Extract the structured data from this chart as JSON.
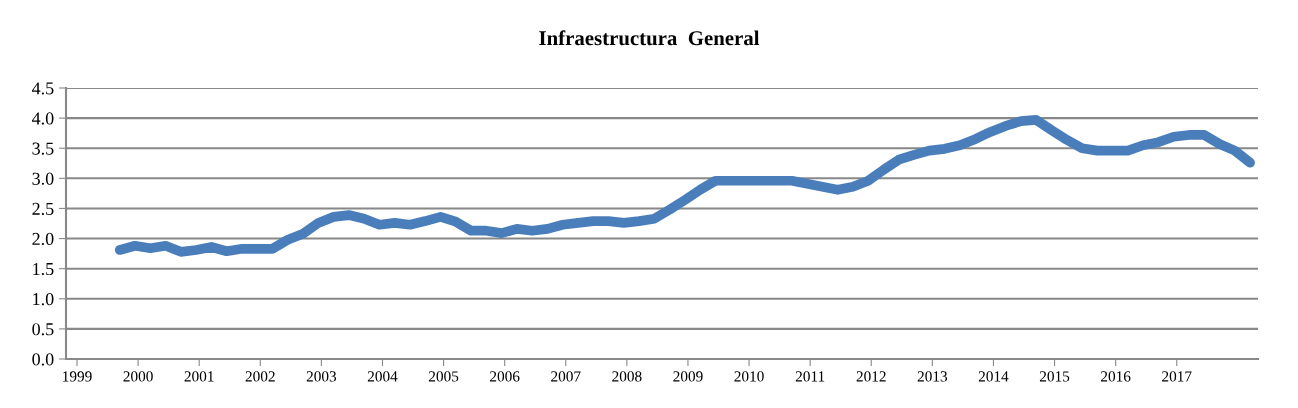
{
  "chart_data": {
    "type": "line",
    "title": "Infraestructura  General",
    "x": [
      1999.7,
      1999.95,
      2000.2,
      2000.45,
      2000.7,
      2000.95,
      2001.2,
      2001.45,
      2001.7,
      2001.95,
      2002.2,
      2002.45,
      2002.7,
      2002.95,
      2003.2,
      2003.45,
      2003.7,
      2003.95,
      2004.2,
      2004.45,
      2004.7,
      2004.95,
      2005.2,
      2005.45,
      2005.7,
      2005.95,
      2006.2,
      2006.45,
      2006.7,
      2006.95,
      2007.2,
      2007.45,
      2007.7,
      2007.95,
      2008.2,
      2008.45,
      2008.7,
      2008.95,
      2009.2,
      2009.45,
      2009.7,
      2009.95,
      2010.2,
      2010.45,
      2010.7,
      2010.95,
      2011.2,
      2011.45,
      2011.7,
      2011.95,
      2012.2,
      2012.45,
      2012.7,
      2012.95,
      2013.2,
      2013.45,
      2013.7,
      2013.95,
      2014.2,
      2014.45,
      2014.7,
      2014.95,
      2015.2,
      2015.45,
      2015.7,
      2015.95,
      2016.2,
      2016.45,
      2016.7,
      2016.95,
      2017.2,
      2017.45,
      2017.7,
      2017.95,
      2018.2
    ],
    "series": [
      {
        "color": "#4a7ebb",
        "values": [
          1.81,
          1.88,
          1.84,
          1.88,
          1.78,
          1.81,
          1.86,
          1.79,
          1.83,
          1.83,
          1.83,
          1.98,
          2.08,
          2.26,
          2.36,
          2.39,
          2.33,
          2.23,
          2.26,
          2.23,
          2.29,
          2.36,
          2.28,
          2.13,
          2.13,
          2.09,
          2.16,
          2.13,
          2.16,
          2.23,
          2.26,
          2.29,
          2.29,
          2.26,
          2.29,
          2.33,
          2.48,
          2.64,
          2.81,
          2.96,
          2.96,
          2.96,
          2.96,
          2.96,
          2.96,
          2.91,
          2.86,
          2.81,
          2.86,
          2.96,
          3.14,
          3.31,
          3.39,
          3.46,
          3.49,
          3.55,
          3.65,
          3.77,
          3.87,
          3.95,
          3.97,
          3.8,
          3.64,
          3.5,
          3.46,
          3.46,
          3.46,
          3.55,
          3.6,
          3.69,
          3.72,
          3.72,
          3.57,
          3.46,
          3.26
        ]
      }
    ],
    "xlim": [
      1998.82,
      2018.33
    ],
    "xticks": [
      1999,
      2000,
      2001,
      2002,
      2003,
      2004,
      2005,
      2006,
      2007,
      2008,
      2009,
      2010,
      2011,
      2012,
      2013,
      2014,
      2015,
      2016,
      2017
    ],
    "ylim": [
      0,
      4.5
    ],
    "yticks": [
      {
        "value": 0,
        "label": "0.0"
      },
      {
        "value": 0.5,
        "label": "0.5"
      },
      {
        "value": 1,
        "label": "1.0"
      },
      {
        "value": 1.5,
        "label": "1.5"
      },
      {
        "value": 2,
        "label": "2.0"
      },
      {
        "value": 2.5,
        "label": "2.5"
      },
      {
        "value": 3,
        "label": "3.0"
      },
      {
        "value": 3.5,
        "label": "3.5"
      },
      {
        "value": 4,
        "label": "4.0"
      },
      {
        "value": 4.5,
        "label": "4.5"
      }
    ],
    "grid": "y",
    "line_style": "solid",
    "marker": "none"
  }
}
